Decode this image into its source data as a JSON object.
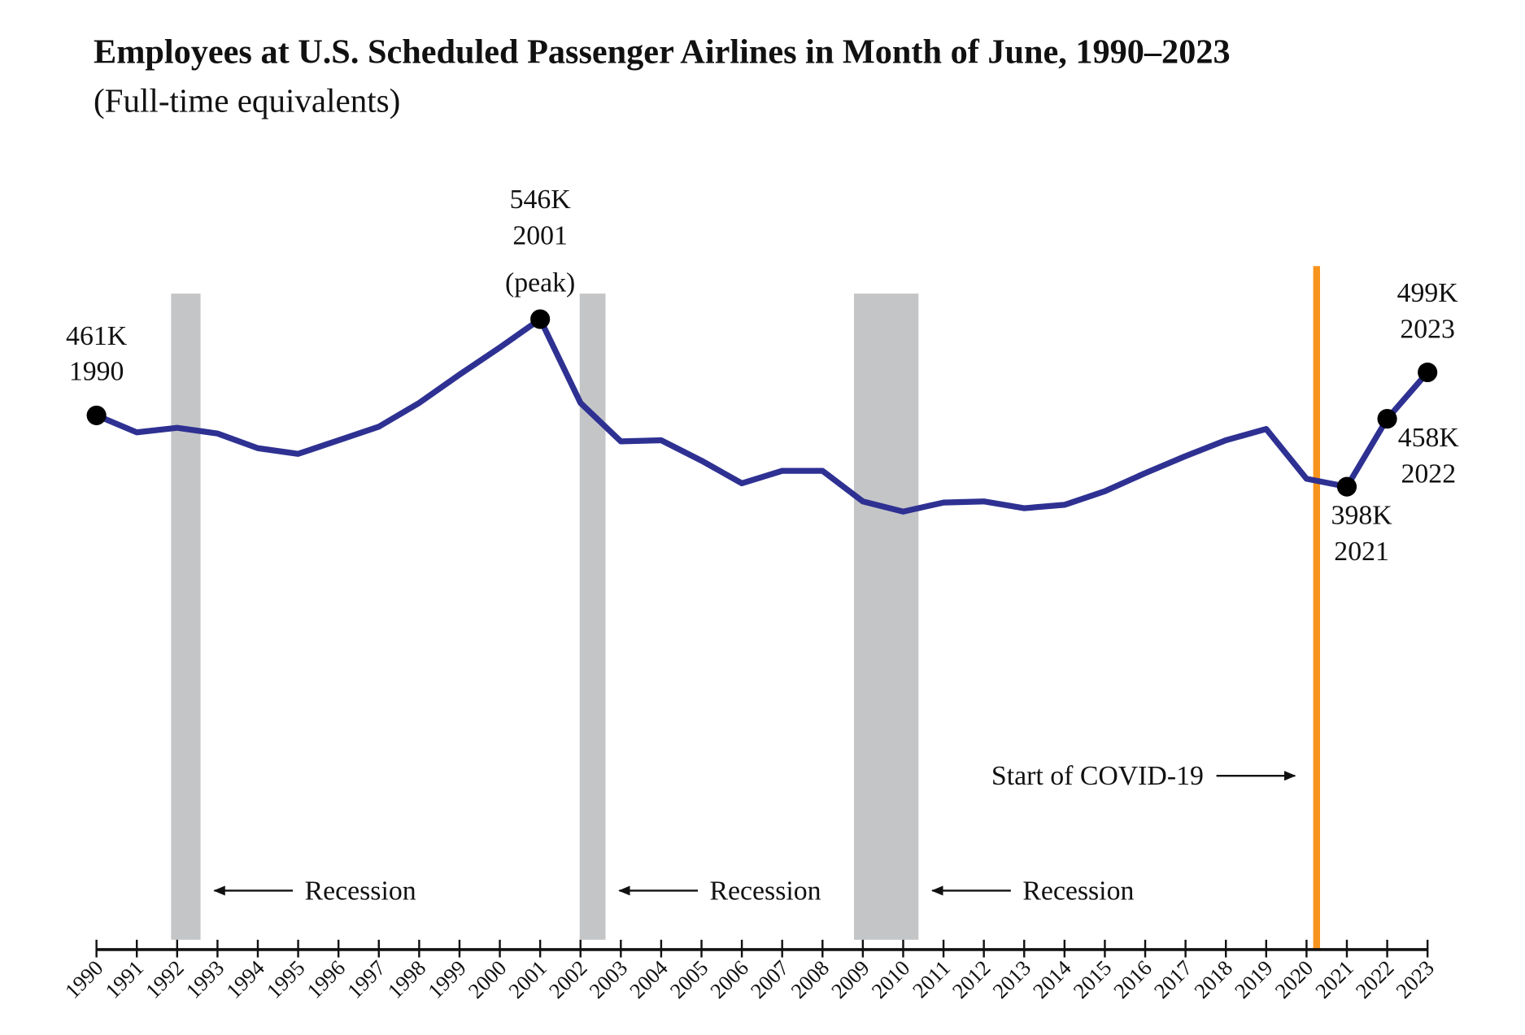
{
  "chart_data": {
    "type": "line",
    "title": "Employees at U.S. Scheduled Passenger Airlines in Month of June, 1990–2023",
    "subtitle": "(Full-time equivalents)",
    "x": [
      1990,
      1991,
      1992,
      1993,
      1994,
      1995,
      1996,
      1997,
      1998,
      1999,
      2000,
      2001,
      2002,
      2003,
      2004,
      2005,
      2006,
      2007,
      2008,
      2009,
      2010,
      2011,
      2012,
      2013,
      2014,
      2015,
      2016,
      2017,
      2018,
      2019,
      2020,
      2021,
      2022,
      2023
    ],
    "values": [
      461,
      446,
      450,
      445,
      432,
      427,
      439,
      451,
      472,
      497,
      521,
      546,
      472,
      438,
      439,
      421,
      401,
      412,
      412,
      385,
      376,
      384,
      385,
      379,
      382,
      394,
      410,
      425,
      439,
      449,
      405,
      398,
      458,
      499
    ],
    "value_labels": [
      "461K",
      null,
      null,
      null,
      null,
      null,
      null,
      null,
      null,
      null,
      null,
      "546K",
      null,
      null,
      null,
      null,
      null,
      null,
      null,
      null,
      null,
      null,
      null,
      null,
      null,
      null,
      null,
      null,
      null,
      null,
      null,
      "398K",
      "458K",
      "499K"
    ],
    "color": "#2e3192",
    "peak_note": "(peak)",
    "recessions": [
      {
        "start": 1991.85,
        "end": 1992.58,
        "label": "Recession"
      },
      {
        "start": 2001.98,
        "end": 2002.62,
        "label": "Recession"
      },
      {
        "start": 2008.78,
        "end": 2010.38,
        "label": "Recession"
      }
    ],
    "recession_color": "#c4c5c7",
    "covid": {
      "x": 2020.25,
      "label": "Start of COVID-19",
      "color": "#f7941d"
    }
  }
}
